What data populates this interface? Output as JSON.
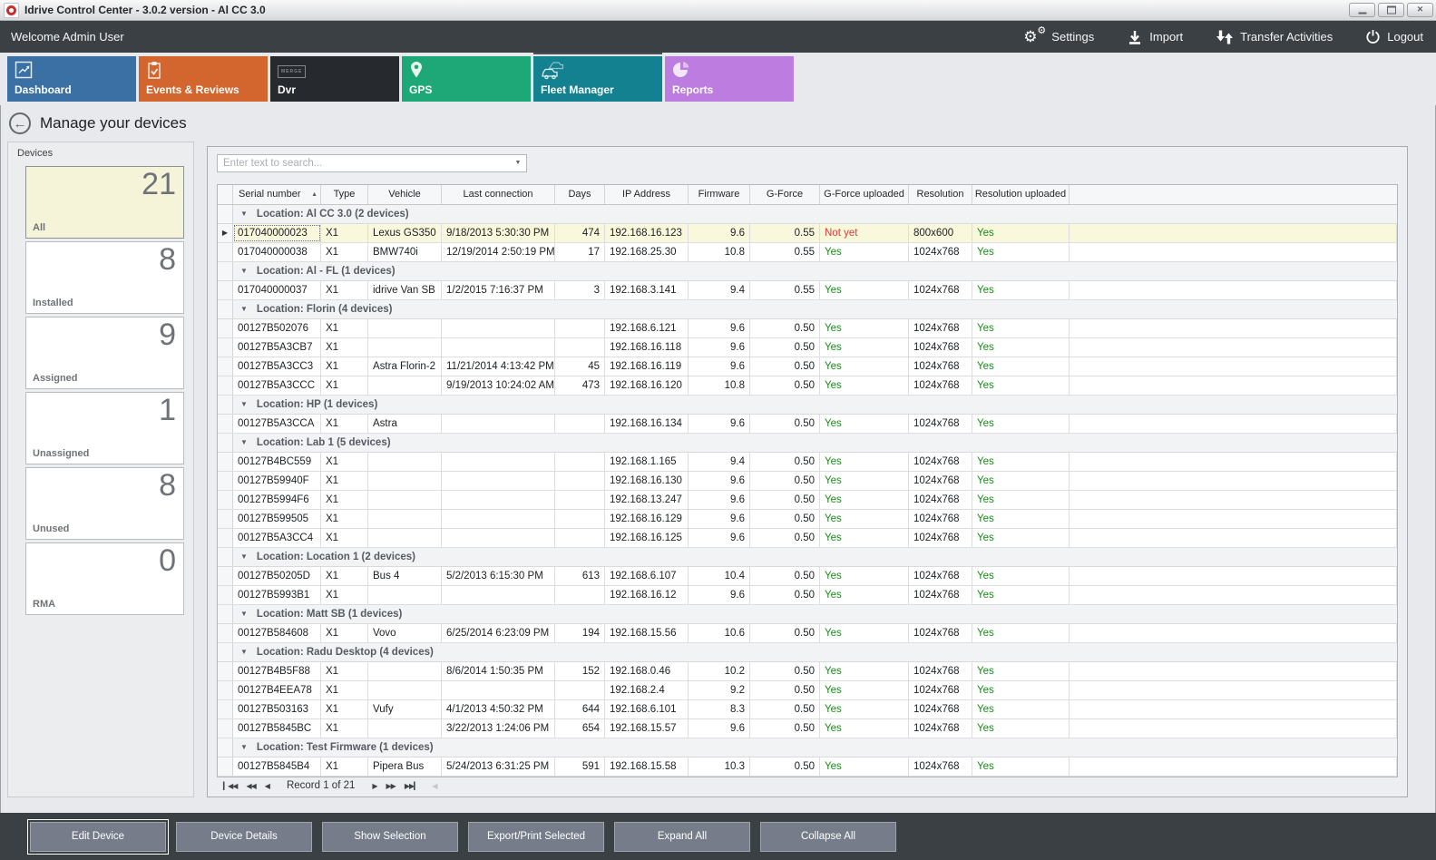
{
  "window": {
    "title": "Idrive Control Center - 3.0.2 version - Al CC 3.0",
    "controls": [
      "minimize",
      "maximize",
      "close"
    ]
  },
  "topbar": {
    "welcome": "Welcome Admin User",
    "menu": [
      {
        "name": "settings",
        "label": "Settings",
        "icon": "gears-icon"
      },
      {
        "name": "import",
        "label": "Import",
        "icon": "download-icon"
      },
      {
        "name": "transfer-activities",
        "label": "Transfer Activities",
        "icon": "up-down-arrows-icon"
      },
      {
        "name": "logout",
        "label": "Logout",
        "icon": "power-icon"
      }
    ]
  },
  "tabs": [
    {
      "name": "dashboard",
      "label": "Dashboard",
      "color": "#3a70a4",
      "icon": "chart-icon",
      "selected": false
    },
    {
      "name": "events-reviews",
      "label": "Events & Reviews",
      "color": "#d2662e",
      "icon": "clipboard-check-icon",
      "selected": false
    },
    {
      "name": "dvr",
      "label": "Dvr",
      "color": "#26292d",
      "icon": "merge-icon",
      "icon_text": "MERGE",
      "selected": false
    },
    {
      "name": "gps",
      "label": "GPS",
      "color": "#1ea878",
      "icon": "map-pin-icon",
      "selected": false
    },
    {
      "name": "fleet-manager",
      "label": "Fleet Manager",
      "color": "#13818f",
      "icon": "vehicles-icon",
      "selected": true
    },
    {
      "name": "reports",
      "label": "Reports",
      "color": "#bd7ce0",
      "icon": "pie-chart-icon",
      "selected": false
    }
  ],
  "page": {
    "title": "Manage your devices"
  },
  "sidebar": {
    "title": "Devices",
    "cards": [
      {
        "label": "All",
        "count": "21",
        "selected": true
      },
      {
        "label": "Installed",
        "count": "8",
        "selected": false
      },
      {
        "label": "Assigned",
        "count": "9",
        "selected": false
      },
      {
        "label": "Unassigned",
        "count": "1",
        "selected": false
      },
      {
        "label": "Unused",
        "count": "8",
        "selected": false
      },
      {
        "label": "RMA",
        "count": "0",
        "selected": false
      }
    ]
  },
  "table": {
    "search_placeholder": "Enter text to search...",
    "columns": [
      {
        "key": "serial",
        "label": "Serial number",
        "sorted": "asc"
      },
      {
        "key": "type",
        "label": "Type"
      },
      {
        "key": "vehicle",
        "label": "Vehicle"
      },
      {
        "key": "last",
        "label": "Last connection"
      },
      {
        "key": "days",
        "label": "Days",
        "align": "right"
      },
      {
        "key": "ip",
        "label": "IP Address"
      },
      {
        "key": "firmware",
        "label": "Firmware",
        "align": "right"
      },
      {
        "key": "gforce",
        "label": "G-Force",
        "align": "right"
      },
      {
        "key": "gfup",
        "label": "G-Force uploaded",
        "status": true
      },
      {
        "key": "resolution",
        "label": "Resolution"
      },
      {
        "key": "resup",
        "label": "Resolution uploaded",
        "status": true
      }
    ],
    "groups": [
      {
        "label": "Location: Al CC 3.0 (2 devices)",
        "rows": [
          {
            "serial": "017040000023",
            "type": "X1",
            "vehicle": "Lexus GS350",
            "last": "9/18/2013 5:30:30 PM",
            "days": "474",
            "ip": "192.168.16.123",
            "firmware": "9.6",
            "gforce": "0.55",
            "gfup": "Not yet",
            "resolution": "800x600",
            "resup": "Yes",
            "selected": true
          },
          {
            "serial": "017040000038",
            "type": "X1",
            "vehicle": "BMW740i",
            "last": "12/19/2014 2:50:19 PM",
            "days": "17",
            "ip": "192.168.25.30",
            "firmware": "10.8",
            "gforce": "0.55",
            "gfup": "Yes",
            "resolution": "1024x768",
            "resup": "Yes",
            "selected": false
          }
        ]
      },
      {
        "label": "Location: Al - FL (1 devices)",
        "rows": [
          {
            "serial": "017040000037",
            "type": "X1",
            "vehicle": "idrive Van SB",
            "last": "1/2/2015 7:16:37 PM",
            "days": "3",
            "ip": "192.168.3.141",
            "firmware": "9.4",
            "gforce": "0.55",
            "gfup": "Yes",
            "resolution": "1024x768",
            "resup": "Yes",
            "selected": false
          }
        ]
      },
      {
        "label": "Location: Florin (4 devices)",
        "rows": [
          {
            "serial": "00127B502076",
            "type": "X1",
            "vehicle": "",
            "last": "",
            "days": "",
            "ip": "192.168.6.121",
            "firmware": "9.6",
            "gforce": "0.50",
            "gfup": "Yes",
            "resolution": "1024x768",
            "resup": "Yes",
            "selected": false
          },
          {
            "serial": "00127B5A3CB7",
            "type": "X1",
            "vehicle": "",
            "last": "",
            "days": "",
            "ip": "192.168.16.118",
            "firmware": "9.6",
            "gforce": "0.50",
            "gfup": "Yes",
            "resolution": "1024x768",
            "resup": "Yes",
            "selected": false
          },
          {
            "serial": "00127B5A3CC3",
            "type": "X1",
            "vehicle": "Astra Florin-2",
            "last": "11/21/2014 4:13:42 PM",
            "days": "45",
            "ip": "192.168.16.119",
            "firmware": "9.6",
            "gforce": "0.50",
            "gfup": "Yes",
            "resolution": "1024x768",
            "resup": "Yes",
            "selected": false
          },
          {
            "serial": "00127B5A3CCC",
            "type": "X1",
            "vehicle": "",
            "last": "9/19/2013 10:24:02 AM",
            "days": "473",
            "ip": "192.168.16.120",
            "firmware": "10.8",
            "gforce": "0.50",
            "gfup": "Yes",
            "resolution": "1024x768",
            "resup": "Yes",
            "selected": false
          }
        ]
      },
      {
        "label": "Location: HP (1 devices)",
        "rows": [
          {
            "serial": "00127B5A3CCA",
            "type": "X1",
            "vehicle": "Astra",
            "last": "",
            "days": "",
            "ip": "192.168.16.134",
            "firmware": "9.6",
            "gforce": "0.50",
            "gfup": "Yes",
            "resolution": "1024x768",
            "resup": "Yes",
            "selected": false
          }
        ]
      },
      {
        "label": "Location: Lab 1 (5 devices)",
        "rows": [
          {
            "serial": "00127B4BC559",
            "type": "X1",
            "vehicle": "",
            "last": "",
            "days": "",
            "ip": "192.168.1.165",
            "firmware": "9.4",
            "gforce": "0.50",
            "gfup": "Yes",
            "resolution": "1024x768",
            "resup": "Yes",
            "selected": false
          },
          {
            "serial": "00127B59940F",
            "type": "X1",
            "vehicle": "",
            "last": "",
            "days": "",
            "ip": "192.168.16.130",
            "firmware": "9.6",
            "gforce": "0.50",
            "gfup": "Yes",
            "resolution": "1024x768",
            "resup": "Yes",
            "selected": false
          },
          {
            "serial": "00127B5994F6",
            "type": "X1",
            "vehicle": "",
            "last": "",
            "days": "",
            "ip": "192.168.13.247",
            "firmware": "9.6",
            "gforce": "0.50",
            "gfup": "Yes",
            "resolution": "1024x768",
            "resup": "Yes",
            "selected": false
          },
          {
            "serial": "00127B599505",
            "type": "X1",
            "vehicle": "",
            "last": "",
            "days": "",
            "ip": "192.168.16.129",
            "firmware": "9.6",
            "gforce": "0.50",
            "gfup": "Yes",
            "resolution": "1024x768",
            "resup": "Yes",
            "selected": false
          },
          {
            "serial": "00127B5A3CC4",
            "type": "X1",
            "vehicle": "",
            "last": "",
            "days": "",
            "ip": "192.168.16.125",
            "firmware": "9.6",
            "gforce": "0.50",
            "gfup": "Yes",
            "resolution": "1024x768",
            "resup": "Yes",
            "selected": false
          }
        ]
      },
      {
        "label": "Location: Location 1 (2 devices)",
        "rows": [
          {
            "serial": "00127B50205D",
            "type": "X1",
            "vehicle": "Bus 4",
            "last": "5/2/2013 6:15:30 PM",
            "days": "613",
            "ip": "192.168.6.107",
            "firmware": "10.4",
            "gforce": "0.50",
            "gfup": "Yes",
            "resolution": "1024x768",
            "resup": "Yes",
            "selected": false
          },
          {
            "serial": "00127B5993B1",
            "type": "X1",
            "vehicle": "",
            "last": "",
            "days": "",
            "ip": "192.168.16.12",
            "firmware": "9.6",
            "gforce": "0.50",
            "gfup": "Yes",
            "resolution": "1024x768",
            "resup": "Yes",
            "selected": false
          }
        ]
      },
      {
        "label": "Location: Matt SB (1 devices)",
        "rows": [
          {
            "serial": "00127B584608",
            "type": "X1",
            "vehicle": "Vovo",
            "last": "6/25/2014 6:23:09 PM",
            "days": "194",
            "ip": "192.168.15.56",
            "firmware": "10.6",
            "gforce": "0.50",
            "gfup": "Yes",
            "resolution": "1024x768",
            "resup": "Yes",
            "selected": false
          }
        ]
      },
      {
        "label": "Location: Radu Desktop (4 devices)",
        "rows": [
          {
            "serial": "00127B4B5F88",
            "type": "X1",
            "vehicle": "",
            "last": "8/6/2014 1:50:35 PM",
            "days": "152",
            "ip": "192.168.0.46",
            "firmware": "10.2",
            "gforce": "0.50",
            "gfup": "Yes",
            "resolution": "1024x768",
            "resup": "Yes",
            "selected": false
          },
          {
            "serial": "00127B4EEA78",
            "type": "X1",
            "vehicle": "",
            "last": "",
            "days": "",
            "ip": "192.168.2.4",
            "firmware": "9.2",
            "gforce": "0.50",
            "gfup": "Yes",
            "resolution": "1024x768",
            "resup": "Yes",
            "selected": false
          },
          {
            "serial": "00127B503163",
            "type": "X1",
            "vehicle": "Vufy",
            "last": "4/1/2013 4:50:32 PM",
            "days": "644",
            "ip": "192.168.6.101",
            "firmware": "8.3",
            "gforce": "0.50",
            "gfup": "Yes",
            "resolution": "1024x768",
            "resup": "Yes",
            "selected": false
          },
          {
            "serial": "00127B5845BC",
            "type": "X1",
            "vehicle": "",
            "last": "3/22/2013 1:24:06 PM",
            "days": "654",
            "ip": "192.168.15.57",
            "firmware": "9.6",
            "gforce": "0.50",
            "gfup": "Yes",
            "resolution": "1024x768",
            "resup": "Yes",
            "selected": false
          }
        ]
      },
      {
        "label": "Location: Test Firmware (1 devices)",
        "rows": [
          {
            "serial": "00127B5845B4",
            "type": "X1",
            "vehicle": "Pipera Bus",
            "last": "5/24/2013 6:31:25 PM",
            "days": "591",
            "ip": "192.168.15.58",
            "firmware": "10.3",
            "gforce": "0.50",
            "gfup": "Yes",
            "resolution": "1024x768",
            "resup": "Yes",
            "selected": false
          }
        ]
      }
    ]
  },
  "pager": {
    "record_text": "Record 1 of 21"
  },
  "footer": {
    "buttons": [
      {
        "label": "Edit Device",
        "focused": true
      },
      {
        "label": "Device Details",
        "focused": false
      },
      {
        "label": "Show Selection",
        "focused": false
      },
      {
        "label": "Export/Print Selected",
        "focused": false
      },
      {
        "label": "Expand All",
        "focused": false
      },
      {
        "label": "Collapse All",
        "focused": false
      }
    ]
  },
  "colors": {
    "yes_green": "#1d8a1d",
    "not_yet_red": "#e23a30",
    "selected_row": "#f9f7dc",
    "selected_card": "#f6f4d8",
    "tab_selected": "#13818f",
    "dark_bar": "#3b4045"
  }
}
